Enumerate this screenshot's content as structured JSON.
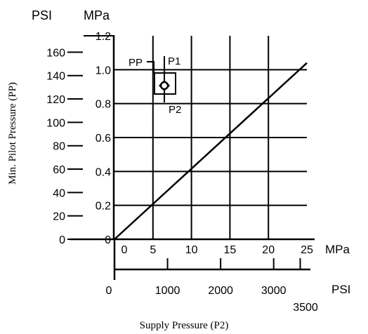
{
  "chart_data": {
    "type": "line",
    "title": "",
    "xlabel": "Supply Pressure (P2)",
    "ylabel": "Min. Pilot Pressure (PP)",
    "x_unit_primary": "MPa",
    "x_unit_secondary": "PSI",
    "y_unit_primary": "MPa",
    "y_unit_secondary": "PSI",
    "xlim_mpa": [
      0,
      25
    ],
    "ylim_mpa": [
      0,
      1.2
    ],
    "x_ticks_mpa": [
      "0",
      "5",
      "10",
      "15",
      "20",
      "25"
    ],
    "x_ticks_psi": [
      "0",
      "1000",
      "2000",
      "3000",
      "3500"
    ],
    "y_ticks_mpa": [
      "0",
      "0.2",
      "0.4",
      "0.6",
      "0.8",
      "1.0",
      "1.2"
    ],
    "y_ticks_psi": [
      "0",
      "20",
      "40",
      "60",
      "80",
      "100",
      "120",
      "140",
      "160"
    ],
    "grid": true,
    "series": [
      {
        "x": [
          0,
          25
        ],
        "y": [
          0,
          1.04
        ]
      }
    ]
  },
  "symbol": {
    "labels": {
      "pp": "PP",
      "p1": "P1",
      "p2": "P2"
    }
  }
}
